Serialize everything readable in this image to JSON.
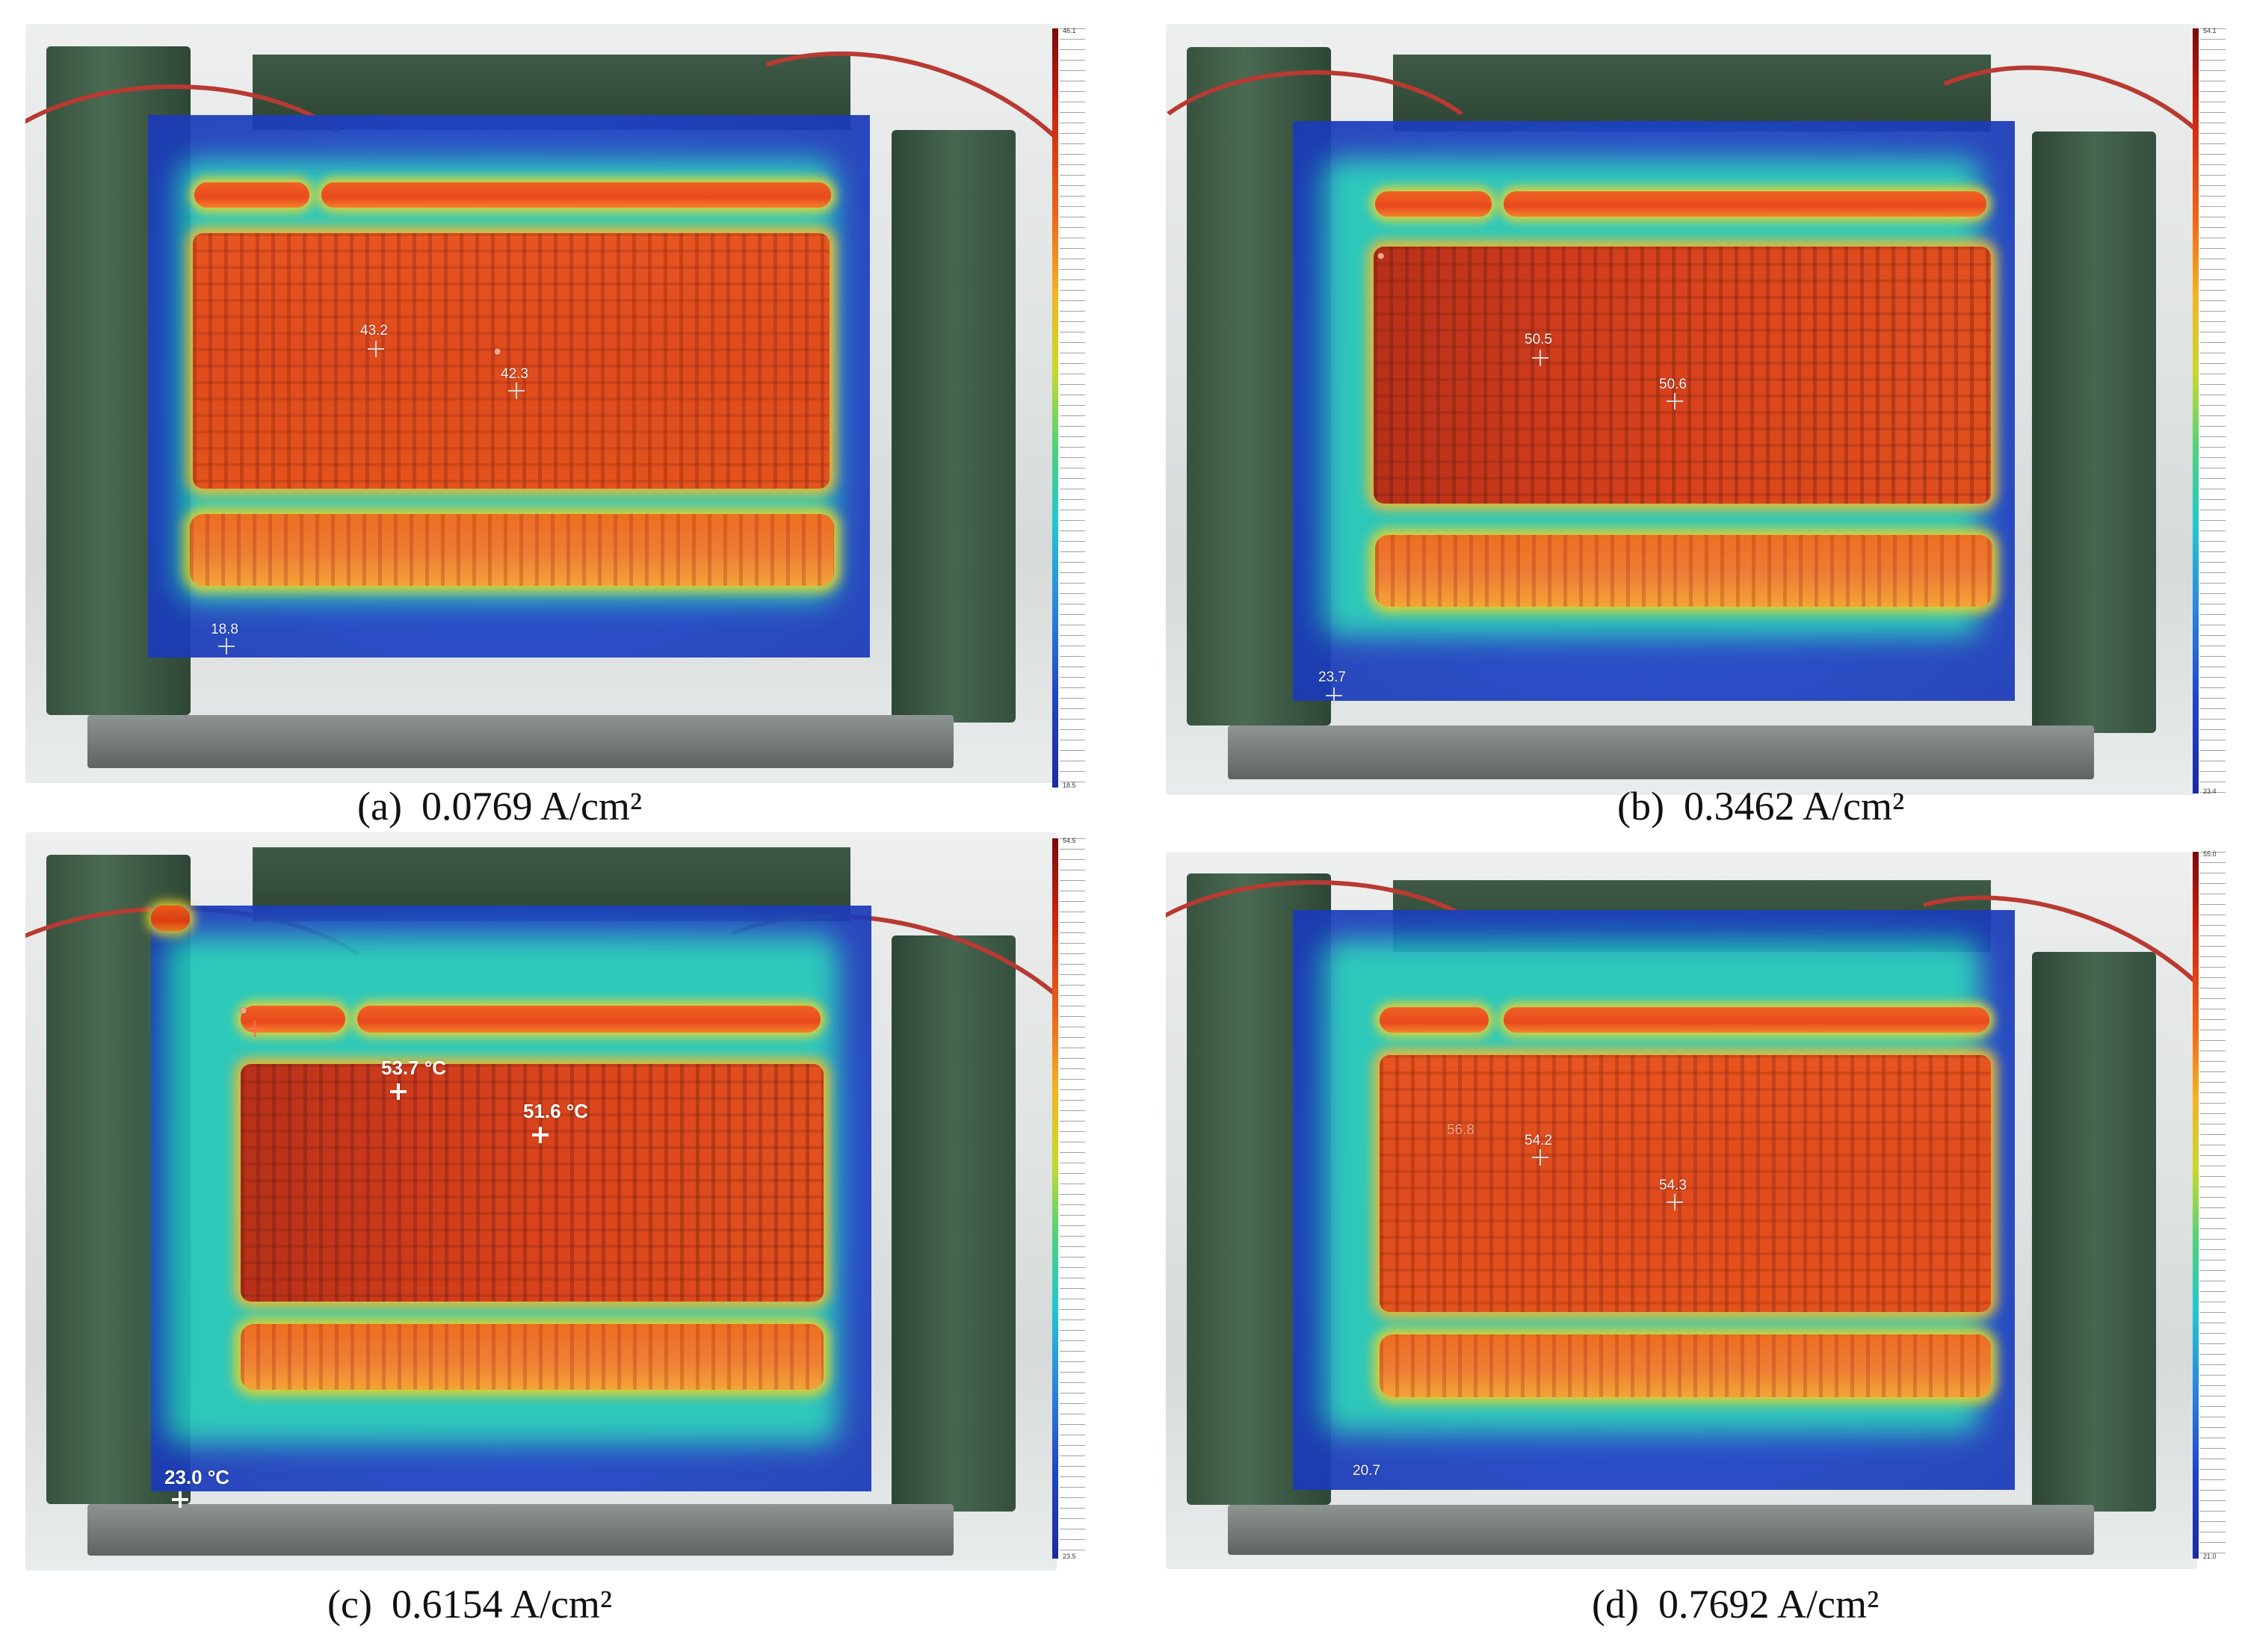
{
  "panels": [
    {
      "id": "a",
      "caption_letter": "(a)",
      "caption_value": "0.0769 A/cm²",
      "temperatures": [
        "43.2",
        "42.3",
        "18.8"
      ],
      "scale_max": "46.1",
      "scale_min": "18.5"
    },
    {
      "id": "b",
      "caption_letter": "(b)",
      "caption_value": "0.3462 A/cm²",
      "temperatures": [
        "50.5",
        "50.6",
        "23.7"
      ],
      "scale_max": "54.1",
      "scale_min": "23.4"
    },
    {
      "id": "c",
      "caption_letter": "(c)",
      "caption_value": "0.6154 A/cm²",
      "temperatures": [
        "53.7 °C",
        "51.6 °C",
        "23.0 °C"
      ],
      "scale_max": "54.5",
      "scale_min": "23.5"
    },
    {
      "id": "d",
      "caption_letter": "(d)",
      "caption_value": "0.7692 A/cm²",
      "temperatures": [
        "56.8",
        "54.2",
        "54.3",
        "20.7"
      ],
      "scale_max": "55.0",
      "scale_min": "21.0"
    }
  ],
  "colors": {
    "cold": "#1d45c8",
    "warm": "#22c7b8",
    "hot": "#e84a12",
    "hottest": "#b4230b"
  }
}
